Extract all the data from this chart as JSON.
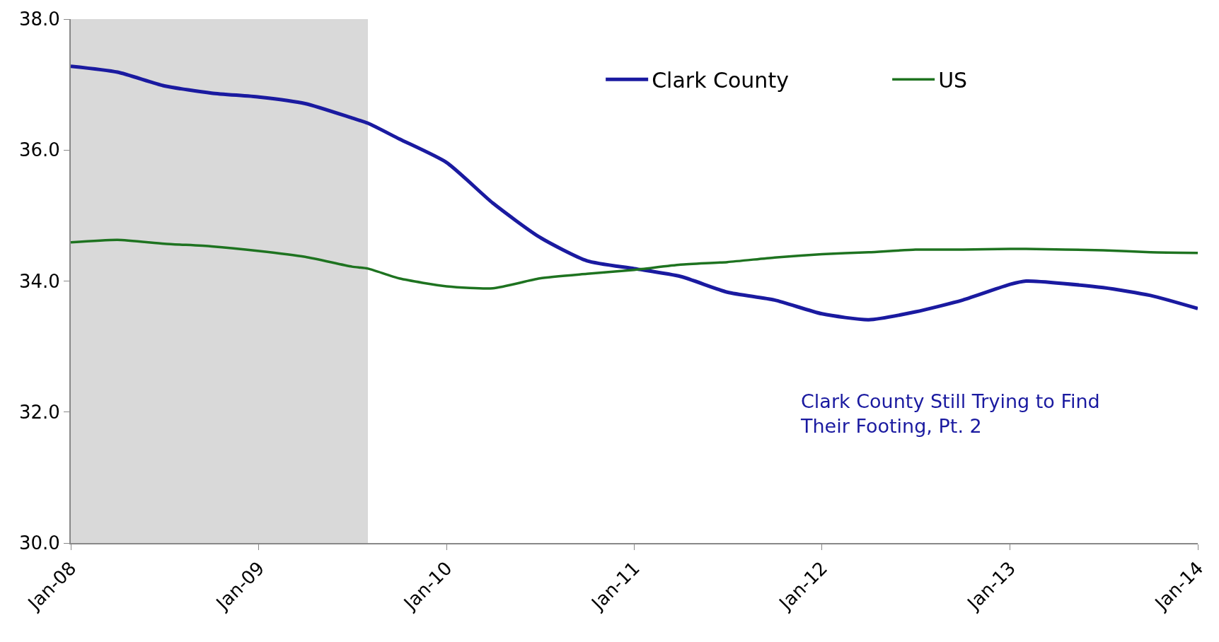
{
  "chart_data": {
    "type": "line",
    "x": [
      "2008-01",
      "2008-04",
      "2008-07",
      "2008-10",
      "2009-01",
      "2009-04",
      "2009-07",
      "2009-08",
      "2009-10",
      "2010-01",
      "2010-04",
      "2010-07",
      "2010-10",
      "2011-01",
      "2011-04",
      "2011-07",
      "2011-10",
      "2012-01",
      "2012-04",
      "2012-07",
      "2012-10",
      "2013-01",
      "2013-02",
      "2013-07",
      "2013-10",
      "2014-01"
    ],
    "series": [
      {
        "name": "Clark County",
        "color": "#1a1aa0",
        "values": [
          37.28,
          37.19,
          36.98,
          36.87,
          36.81,
          36.71,
          36.49,
          36.41,
          36.17,
          35.81,
          35.19,
          34.67,
          34.31,
          34.19,
          34.07,
          33.83,
          33.71,
          33.5,
          33.41,
          33.53,
          33.71,
          33.95,
          34.0,
          33.9,
          33.78,
          33.58
        ]
      },
      {
        "name": "US",
        "color": "#1e7320",
        "values": [
          34.59,
          34.63,
          34.57,
          34.53,
          34.46,
          34.37,
          34.22,
          34.19,
          34.04,
          33.92,
          33.89,
          34.04,
          34.11,
          34.17,
          34.25,
          34.29,
          34.36,
          34.41,
          34.44,
          34.48,
          34.48,
          34.49,
          34.49,
          34.47,
          34.44,
          34.43
        ]
      }
    ],
    "ylim": [
      30,
      38
    ],
    "yticks": [
      {
        "value": 30,
        "label": "30.0"
      },
      {
        "value": 32,
        "label": "32.0"
      },
      {
        "value": 34,
        "label": "34.0"
      },
      {
        "value": 36,
        "label": "36.0"
      },
      {
        "value": 38,
        "label": "38.0"
      }
    ],
    "xlim": [
      "2008-01",
      "2014-01"
    ],
    "xticks": [
      {
        "value": "2008-01",
        "label": "Jan-08"
      },
      {
        "value": "2009-01",
        "label": "Jan-09"
      },
      {
        "value": "2010-01",
        "label": "Jan-10"
      },
      {
        "value": "2011-01",
        "label": "Jan-11"
      },
      {
        "value": "2012-01",
        "label": "Jan-12"
      },
      {
        "value": "2013-01",
        "label": "Jan-13"
      },
      {
        "value": "2014-01",
        "label": "Jan-14"
      }
    ],
    "bands": [
      {
        "axis": "x",
        "from": "2008-01",
        "to": "2009-08",
        "label": null,
        "color": "#d9d9d9"
      }
    ],
    "annotations": [
      "Clark County Still Trying to Find\nTheir Footing, Pt. 2"
    ],
    "legend": "top right",
    "grid": false,
    "marker": "none",
    "line_style": "solid"
  }
}
